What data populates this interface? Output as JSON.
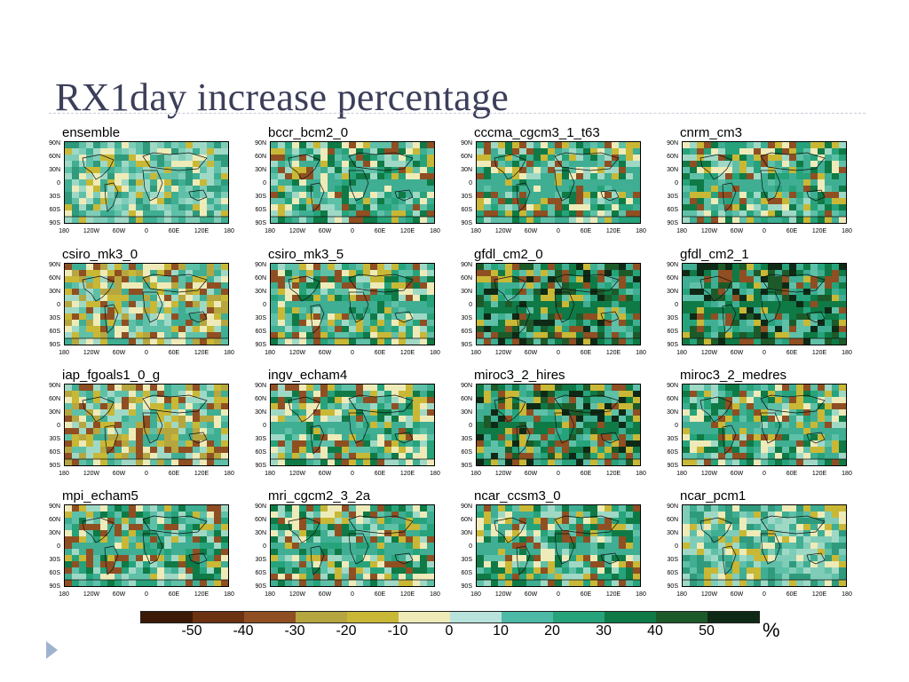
{
  "slide": {
    "title": "RX1day increase percentage"
  },
  "axes": {
    "lat_ticks": [
      "90N",
      "60N",
      "30N",
      "0",
      "30S",
      "60S",
      "90S"
    ],
    "lon_ticks": [
      "180",
      "120W",
      "60W",
      "0",
      "60E",
      "120E",
      "180"
    ]
  },
  "panels": [
    {
      "title": "ensemble",
      "tone": "light"
    },
    {
      "title": "bccr_bcm2_0",
      "tone": "mixed"
    },
    {
      "title": "cccma_cgcm3_1_t63",
      "tone": "mixed"
    },
    {
      "title": "cnrm_cm3",
      "tone": "mixed"
    },
    {
      "title": "csiro_mk3_0",
      "tone": "yellow"
    },
    {
      "title": "csiro_mk3_5",
      "tone": "mixed"
    },
    {
      "title": "gfdl_cm2_0",
      "tone": "dark"
    },
    {
      "title": "gfdl_cm2_1",
      "tone": "dark"
    },
    {
      "title": "iap_fgoals1_0_g",
      "tone": "yellow"
    },
    {
      "title": "ingv_echam4",
      "tone": "mixed"
    },
    {
      "title": "miroc3_2_hires",
      "tone": "dark"
    },
    {
      "title": "miroc3_2_medres",
      "tone": "mixed"
    },
    {
      "title": "mpi_echam5",
      "tone": "mixed"
    },
    {
      "title": "mri_cgcm2_3_2a",
      "tone": "mixed"
    },
    {
      "title": "ncar_ccsm3_0",
      "tone": "mixed"
    },
    {
      "title": "ncar_pcm1",
      "tone": "light"
    }
  ],
  "colorbar": {
    "colors": [
      "#3b1a08",
      "#6b3312",
      "#8f4f22",
      "#b5a640",
      "#c9b836",
      "#eeebb9",
      "#b7e3dc",
      "#4dbaa8",
      "#26a37a",
      "#0f7a46",
      "#1d5a2a",
      "#0e2a16"
    ],
    "labels": [
      "-50",
      "-40",
      "-30",
      "-20",
      "-10",
      "0",
      "10",
      "20",
      "30",
      "40",
      "50"
    ],
    "unit": "%"
  }
}
